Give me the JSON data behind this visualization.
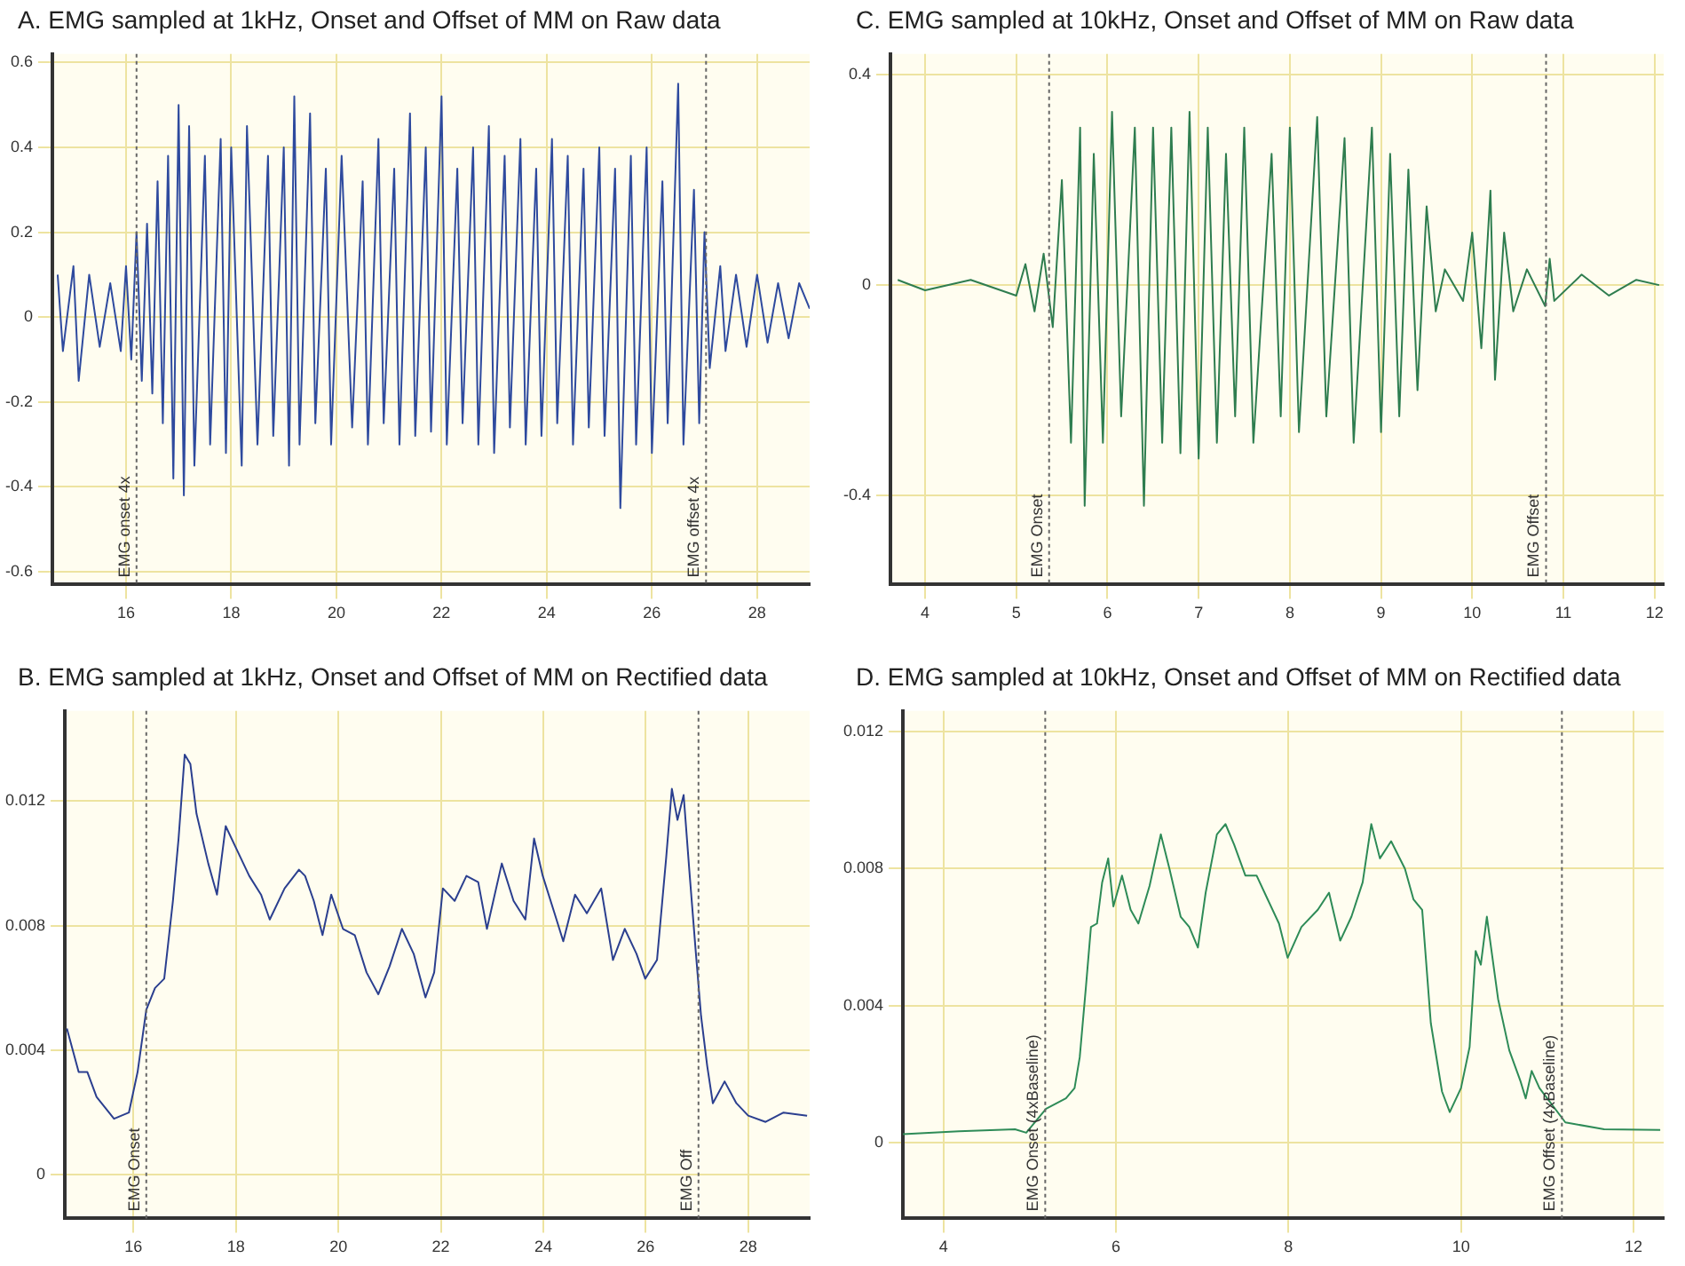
{
  "chart_data": [
    {
      "type": "line",
      "title": "A. EMG sampled at 1kHz, Onset and Offset of MM on Raw data",
      "xlim": [
        14.6,
        29
      ],
      "ylim": [
        -0.63,
        0.62
      ],
      "xticks": [
        16,
        18,
        20,
        22,
        24,
        26,
        28
      ],
      "yticks": [
        -0.6,
        -0.4,
        -0.2,
        0,
        0.2,
        0.4,
        0.6
      ],
      "grid": true,
      "legend": false,
      "series": [
        {
          "color": "#2e4a9e",
          "x": [
            14.7,
            14.8,
            15.0,
            15.1,
            15.3,
            15.5,
            15.7,
            15.9,
            16.0,
            16.1,
            16.2,
            16.3,
            16.4,
            16.5,
            16.6,
            16.7,
            16.8,
            16.9,
            17.0,
            17.1,
            17.2,
            17.3,
            17.5,
            17.6,
            17.8,
            17.9,
            18.0,
            18.2,
            18.3,
            18.5,
            18.7,
            18.8,
            19.0,
            19.1,
            19.2,
            19.3,
            19.5,
            19.6,
            19.8,
            19.9,
            20.1,
            20.3,
            20.5,
            20.6,
            20.8,
            20.9,
            21.1,
            21.2,
            21.4,
            21.5,
            21.7,
            21.8,
            22.0,
            22.1,
            22.3,
            22.4,
            22.6,
            22.7,
            22.9,
            23.0,
            23.2,
            23.3,
            23.5,
            23.6,
            23.8,
            23.9,
            24.1,
            24.2,
            24.4,
            24.5,
            24.7,
            24.8,
            25.0,
            25.1,
            25.3,
            25.4,
            25.6,
            25.7,
            25.9,
            26.0,
            26.2,
            26.3,
            26.5,
            26.6,
            26.8,
            26.9,
            27.0,
            27.1,
            27.3,
            27.4,
            27.6,
            27.8,
            28.0,
            28.2,
            28.4,
            28.6,
            28.8,
            29.0
          ],
          "values": [
            0.1,
            -0.08,
            0.12,
            -0.15,
            0.1,
            -0.07,
            0.08,
            -0.08,
            0.12,
            -0.1,
            0.2,
            -0.15,
            0.22,
            -0.18,
            0.32,
            -0.25,
            0.38,
            -0.38,
            0.5,
            -0.42,
            0.45,
            -0.35,
            0.38,
            -0.3,
            0.42,
            -0.32,
            0.4,
            -0.35,
            0.45,
            -0.3,
            0.38,
            -0.28,
            0.4,
            -0.35,
            0.52,
            -0.3,
            0.48,
            -0.25,
            0.35,
            -0.3,
            0.38,
            -0.26,
            0.32,
            -0.3,
            0.42,
            -0.25,
            0.35,
            -0.3,
            0.48,
            -0.28,
            0.4,
            -0.27,
            0.52,
            -0.3,
            0.35,
            -0.25,
            0.4,
            -0.3,
            0.45,
            -0.32,
            0.38,
            -0.26,
            0.42,
            -0.3,
            0.35,
            -0.28,
            0.42,
            -0.25,
            0.38,
            -0.3,
            0.35,
            -0.26,
            0.4,
            -0.28,
            0.35,
            -0.45,
            0.38,
            -0.3,
            0.4,
            -0.32,
            0.32,
            -0.25,
            0.55,
            -0.3,
            0.3,
            -0.25,
            0.2,
            -0.12,
            0.12,
            -0.08,
            0.1,
            -0.07,
            0.1,
            -0.06,
            0.08,
            -0.05,
            0.08,
            0.02
          ]
        }
      ],
      "ref_lines": [
        {
          "axis": "x",
          "value": 16.2,
          "label": "EMG onset 4x"
        },
        {
          "axis": "x",
          "value": 27.03,
          "label": "EMG offset 4x"
        }
      ]
    },
    {
      "type": "line",
      "title": "C. EMG sampled at 10kHz, Onset and Offset of MM on Raw data",
      "xlim": [
        3.62,
        12.1
      ],
      "ylim": [
        -0.57,
        0.44
      ],
      "xticks": [
        4,
        5,
        6,
        7,
        8,
        9,
        10,
        11,
        12
      ],
      "yticks": [
        -0.4,
        0,
        0.4
      ],
      "grid": true,
      "legend": false,
      "series": [
        {
          "color": "#2e7d4f",
          "x": [
            3.7,
            4.0,
            4.5,
            5.0,
            5.1,
            5.2,
            5.3,
            5.4,
            5.5,
            5.6,
            5.7,
            5.75,
            5.85,
            5.95,
            6.05,
            6.15,
            6.3,
            6.4,
            6.5,
            6.6,
            6.7,
            6.8,
            6.9,
            7.0,
            7.1,
            7.2,
            7.3,
            7.4,
            7.5,
            7.6,
            7.8,
            7.9,
            8.0,
            8.1,
            8.3,
            8.4,
            8.6,
            8.7,
            8.9,
            9.0,
            9.1,
            9.2,
            9.3,
            9.4,
            9.5,
            9.6,
            9.7,
            9.9,
            10.0,
            10.1,
            10.2,
            10.25,
            10.35,
            10.45,
            10.6,
            10.8,
            10.85,
            10.9,
            11.2,
            11.5,
            11.8,
            12.05
          ],
          "values": [
            0.01,
            -0.01,
            0.01,
            -0.02,
            0.04,
            -0.05,
            0.06,
            -0.08,
            0.2,
            -0.3,
            0.3,
            -0.42,
            0.25,
            -0.3,
            0.33,
            -0.25,
            0.3,
            -0.42,
            0.3,
            -0.3,
            0.3,
            -0.32,
            0.33,
            -0.33,
            0.3,
            -0.3,
            0.25,
            -0.25,
            0.3,
            -0.3,
            0.25,
            -0.25,
            0.3,
            -0.28,
            0.32,
            -0.25,
            0.28,
            -0.3,
            0.3,
            -0.28,
            0.25,
            -0.25,
            0.22,
            -0.2,
            0.15,
            -0.05,
            0.03,
            -0.03,
            0.1,
            -0.12,
            0.18,
            -0.18,
            0.1,
            -0.05,
            0.03,
            -0.04,
            0.05,
            -0.03,
            0.02,
            -0.02,
            0.01,
            0.0
          ]
        }
      ],
      "ref_lines": [
        {
          "axis": "x",
          "value": 5.36,
          "label": "EMG Onset"
        },
        {
          "axis": "x",
          "value": 10.81,
          "label": "EMG Offset"
        }
      ]
    },
    {
      "type": "line",
      "title": "B. EMG sampled at 1kHz, Onset and Offset of MM on Rectified data",
      "xlim": [
        14.66,
        29.2
      ],
      "ylim": [
        -0.0014,
        0.0149
      ],
      "xticks": [
        16,
        18,
        20,
        22,
        24,
        26,
        28
      ],
      "yticks": [
        0,
        0.004,
        0.008,
        0.012
      ],
      "grid": true,
      "legend": false,
      "series": [
        {
          "color": "#2b3f8f",
          "x": [
            14.7,
            14.93,
            15.1,
            15.28,
            15.62,
            15.91,
            16.08,
            16.25,
            16.42,
            16.6,
            16.77,
            16.88,
            17.0,
            17.11,
            17.23,
            17.46,
            17.63,
            17.8,
            18.03,
            18.26,
            18.49,
            18.66,
            18.95,
            19.23,
            19.35,
            19.52,
            19.69,
            19.86,
            20.09,
            20.32,
            20.55,
            20.78,
            21.0,
            21.24,
            21.47,
            21.7,
            21.87,
            22.04,
            22.27,
            22.5,
            22.73,
            22.9,
            23.19,
            23.42,
            23.65,
            23.82,
            23.99,
            24.22,
            24.39,
            24.62,
            24.85,
            25.13,
            25.36,
            25.59,
            25.82,
            25.99,
            26.22,
            26.4,
            26.51,
            26.62,
            26.74,
            26.85,
            26.97,
            27.08,
            27.2,
            27.31,
            27.54,
            27.77,
            28.0,
            28.34,
            28.69,
            29.15
          ],
          "values": [
            0.0047,
            0.0033,
            0.0033,
            0.0025,
            0.0018,
            0.002,
            0.0033,
            0.0053,
            0.006,
            0.0063,
            0.0088,
            0.0108,
            0.0135,
            0.0132,
            0.0116,
            0.01,
            0.009,
            0.0112,
            0.0104,
            0.0096,
            0.009,
            0.0082,
            0.0092,
            0.0098,
            0.0096,
            0.0088,
            0.0077,
            0.009,
            0.0079,
            0.0077,
            0.0065,
            0.0058,
            0.0067,
            0.0079,
            0.0071,
            0.0057,
            0.0065,
            0.0092,
            0.0088,
            0.0096,
            0.0094,
            0.0079,
            0.01,
            0.0088,
            0.0082,
            0.0108,
            0.0096,
            0.0084,
            0.0075,
            0.009,
            0.0084,
            0.0092,
            0.0069,
            0.0079,
            0.0071,
            0.0063,
            0.0069,
            0.0102,
            0.0124,
            0.0114,
            0.0122,
            0.0098,
            0.0073,
            0.0051,
            0.0035,
            0.0023,
            0.003,
            0.0023,
            0.0019,
            0.0017,
            0.002,
            0.0019
          ]
        }
      ],
      "ref_lines": [
        {
          "axis": "x",
          "value": 16.25,
          "label": "EMG Onset"
        },
        {
          "axis": "x",
          "value": 27.03,
          "label": "EMG Off"
        }
      ]
    },
    {
      "type": "line",
      "title": "D. EMG sampled at 10kHz, Onset and Offset of MM on Rectified data",
      "xlim": [
        3.53,
        12.35
      ],
      "ylim": [
        -0.0022,
        0.0126
      ],
      "xticks": [
        4,
        6,
        8,
        10,
        12
      ],
      "yticks": [
        0,
        0.004,
        0.008,
        0.012
      ],
      "grid": true,
      "legend": false,
      "series": [
        {
          "color": "#2e8b57",
          "x": [
            3.53,
            4.18,
            4.83,
            4.96,
            5.19,
            5.42,
            5.52,
            5.58,
            5.65,
            5.71,
            5.78,
            5.84,
            5.91,
            5.97,
            6.07,
            6.17,
            6.26,
            6.39,
            6.52,
            6.62,
            6.75,
            6.85,
            6.95,
            7.04,
            7.17,
            7.27,
            7.37,
            7.5,
            7.63,
            7.76,
            7.89,
            7.99,
            8.15,
            8.34,
            8.47,
            8.6,
            8.73,
            8.86,
            8.96,
            9.06,
            9.19,
            9.35,
            9.45,
            9.55,
            9.65,
            9.78,
            9.87,
            10.0,
            10.1,
            10.17,
            10.23,
            10.3,
            10.43,
            10.56,
            10.69,
            10.75,
            10.82,
            10.91,
            11.21,
            11.66,
            12.31
          ],
          "values": [
            0.00026,
            0.00034,
            0.0004,
            0.0003,
            0.001,
            0.0013,
            0.0016,
            0.0025,
            0.0045,
            0.0063,
            0.0064,
            0.0076,
            0.0083,
            0.0069,
            0.0078,
            0.0068,
            0.0064,
            0.0075,
            0.009,
            0.008,
            0.0066,
            0.0063,
            0.0057,
            0.0073,
            0.009,
            0.0093,
            0.0087,
            0.0078,
            0.0078,
            0.0071,
            0.0064,
            0.0054,
            0.0063,
            0.0068,
            0.0073,
            0.0059,
            0.0066,
            0.0076,
            0.0093,
            0.0083,
            0.0088,
            0.008,
            0.0071,
            0.0068,
            0.0035,
            0.0015,
            0.0009,
            0.0016,
            0.0028,
            0.0056,
            0.0052,
            0.0066,
            0.0042,
            0.0027,
            0.0018,
            0.0013,
            0.0021,
            0.0016,
            0.0006,
            0.0004,
            0.00038
          ]
        }
      ],
      "ref_lines": [
        {
          "axis": "x",
          "value": 5.18,
          "label": "EMG Onset (4xBaseline)"
        },
        {
          "axis": "x",
          "value": 11.17,
          "label": "EMG Offset (4xBaseline)"
        }
      ]
    }
  ]
}
